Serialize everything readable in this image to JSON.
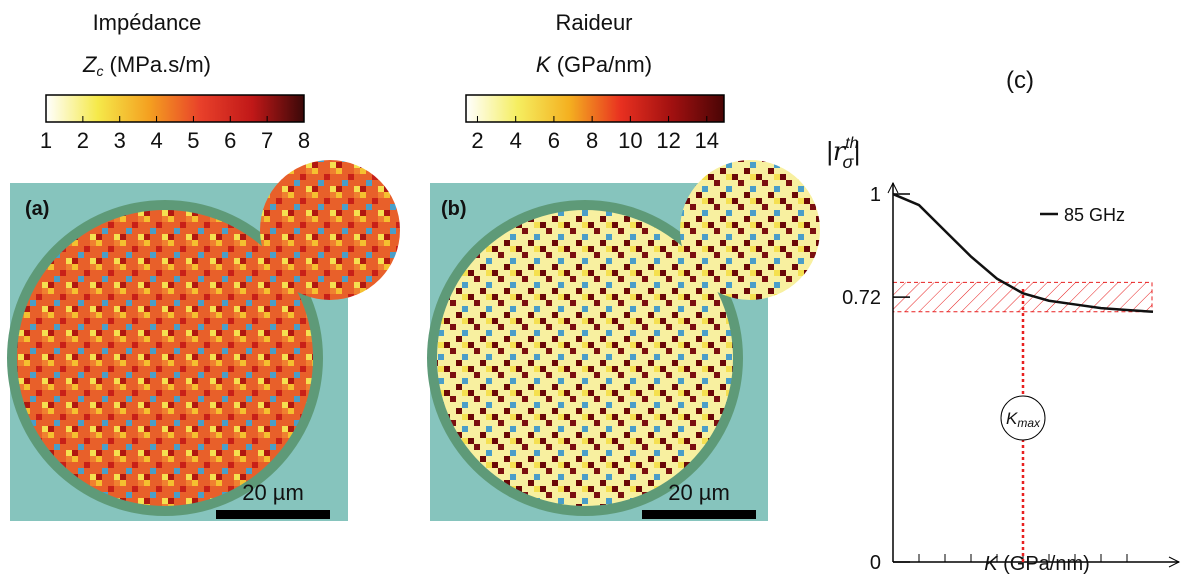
{
  "colorbars": [
    {
      "title": "Impédance",
      "symbol": "Z",
      "subscript": "c",
      "unit": "(MPa.s/m)",
      "range": [
        1,
        8
      ],
      "ticks": [
        1,
        2,
        3,
        4,
        5,
        6,
        7,
        8
      ],
      "colors": [
        "#ffffff",
        "#f5e94a",
        "#f4a020",
        "#e8402a",
        "#c01818",
        "#3a0808"
      ]
    },
    {
      "title": "Raideur",
      "symbol": "K",
      "unit": "(GPa/nm)",
      "range": [
        1.4,
        14.9
      ],
      "ticks": [
        2,
        4,
        6,
        8,
        10,
        12,
        14
      ],
      "colors": [
        "#ffffff",
        "#f5ee60",
        "#f4b020",
        "#e83020",
        "#a01010",
        "#4a0505"
      ]
    }
  ],
  "panels": [
    {
      "label": "(a)",
      "scale_bar": "20 µm"
    },
    {
      "label": "(b)",
      "scale_bar": "20 µm"
    }
  ],
  "chart_data": {
    "type": "line",
    "label": "(c)",
    "ylabel": {
      "left": "|",
      "symbol": "r",
      "sub": "σ",
      "sup": "th",
      "right": "|"
    },
    "xlabel": {
      "symbol": "K",
      "unit": "(GPa/nm)"
    },
    "x": [
      0,
      1,
      2,
      3,
      4,
      5,
      6,
      7,
      8,
      9,
      10
    ],
    "series": [
      {
        "name": "85 GHz",
        "color": "#111111",
        "values": [
          1,
          0.97,
          0.9,
          0.83,
          0.77,
          0.73,
          0.71,
          0.7,
          0.69,
          0.685,
          0.68
        ]
      }
    ],
    "xlim": [
      0,
      11
    ],
    "ylim": [
      0,
      1.03
    ],
    "xticks": [
      0,
      1,
      3,
      5,
      7,
      9
    ],
    "minor_xticks": [
      2,
      4,
      6,
      8
    ],
    "yticks": [
      0,
      0.72,
      1
    ],
    "band": [
      0.68,
      0.76
    ],
    "band_color": "#e82020",
    "marker": {
      "x": 5,
      "symbol": "K",
      "subscript": "max"
    }
  }
}
